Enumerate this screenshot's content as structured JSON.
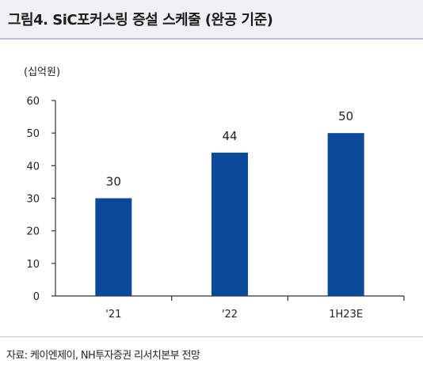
{
  "header": {
    "title": "그림4.  SiC포커스링 증설 스케줄 (완공 기준)"
  },
  "chart_data": {
    "type": "bar",
    "unit_label": "(십억원)",
    "categories": [
      "'21",
      "'22",
      "1H23E"
    ],
    "values": [
      30,
      44,
      50
    ],
    "data_labels": [
      "30",
      "44",
      "50"
    ],
    "ylim": [
      0,
      60
    ],
    "yticks": [
      0,
      10,
      20,
      30,
      40,
      50,
      60
    ],
    "bar_color": "#0b4a99",
    "grid": false,
    "legend": "none"
  },
  "footer": {
    "source": "자료: 케이엔제이, NH투자증권 리서치본부 전망"
  }
}
